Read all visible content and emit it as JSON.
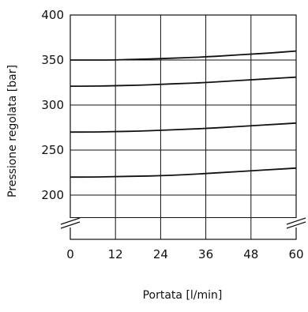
{
  "chart_data": {
    "type": "line",
    "xlabel": "Portata [l/min]",
    "ylabel": "Pressione regolata [bar]",
    "xlim": [
      0,
      60
    ],
    "ylim": [
      200,
      400
    ],
    "y_axis_break": true,
    "x_axis_break": false,
    "grid": true,
    "x_ticks": [
      0,
      12,
      24,
      36,
      48,
      60
    ],
    "x_tick_labels": [
      "0",
      "12",
      "24",
      "36",
      "48",
      "60"
    ],
    "y_ticks": [
      200,
      250,
      300,
      350,
      400
    ],
    "y_tick_labels": [
      "200",
      "250",
      "300",
      "350",
      "400"
    ],
    "series": [
      {
        "x": [
          0,
          6,
          12,
          18,
          24,
          30,
          36,
          42,
          48,
          54,
          60
        ],
        "y": [
          350,
          350,
          350,
          351,
          351.5,
          352.5,
          353.5,
          355,
          356.5,
          358,
          360
        ]
      },
      {
        "x": [
          0,
          6,
          12,
          18,
          24,
          30,
          36,
          42,
          48,
          54,
          60
        ],
        "y": [
          321,
          321,
          321.5,
          322,
          323,
          324,
          325,
          326.5,
          328,
          329.5,
          331
        ]
      },
      {
        "x": [
          0,
          6,
          12,
          18,
          24,
          30,
          36,
          42,
          48,
          54,
          60
        ],
        "y": [
          270,
          270,
          270.5,
          271,
          272,
          273,
          274,
          275.5,
          277,
          278.5,
          280
        ]
      },
      {
        "x": [
          0,
          6,
          12,
          18,
          24,
          30,
          36,
          42,
          48,
          54,
          60
        ],
        "y": [
          220,
          220,
          220.5,
          221,
          221.5,
          222.5,
          224,
          225.5,
          227,
          228.5,
          230
        ]
      }
    ],
    "colors": {
      "line": "#111111",
      "grid": "#111111",
      "background": "#ffffff"
    }
  }
}
